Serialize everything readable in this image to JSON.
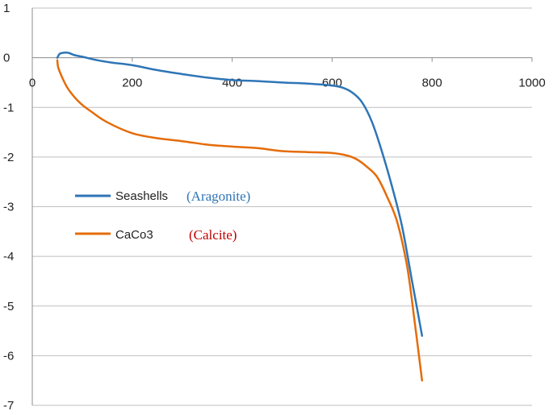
{
  "chart_data": {
    "type": "line",
    "title": "",
    "xlabel": "",
    "ylabel": "",
    "xlim": [
      0,
      1000
    ],
    "ylim": [
      -7,
      1
    ],
    "x_ticks": [
      0,
      200,
      400,
      600,
      800,
      1000
    ],
    "y_ticks": [
      1,
      0,
      -1,
      -2,
      -3,
      -4,
      -5,
      -6,
      -7
    ],
    "x_tick_labels": [
      "0",
      "200",
      "400",
      "600",
      "800",
      "1000"
    ],
    "y_tick_labels": [
      "1",
      "0",
      "-1",
      "-2",
      "-3",
      "-4",
      "-5",
      "-6",
      "-7"
    ],
    "grid": true,
    "legend_position": "center-left",
    "series": [
      {
        "name": "Seashells",
        "annotation": "(Aragonite)",
        "color": "#2e75b6",
        "annotation_color": "#2e75b6",
        "x": [
          50,
          55,
          62,
          72,
          85,
          100,
          130,
          160,
          200,
          250,
          300,
          350,
          400,
          450,
          500,
          550,
          600,
          620,
          640,
          660,
          680,
          700,
          720,
          740,
          760,
          780
        ],
        "y": [
          0.0,
          0.08,
          0.1,
          0.1,
          0.05,
          0.02,
          -0.05,
          -0.1,
          -0.15,
          -0.25,
          -0.33,
          -0.4,
          -0.45,
          -0.47,
          -0.5,
          -0.52,
          -0.56,
          -0.6,
          -0.7,
          -0.9,
          -1.3,
          -1.9,
          -2.6,
          -3.4,
          -4.5,
          -5.6
        ]
      },
      {
        "name": "CaCo3",
        "annotation": "(Calcite)",
        "color": "#e46c0a",
        "annotation_color": "#c00000",
        "x": [
          50,
          52,
          60,
          70,
          85,
          100,
          120,
          150,
          200,
          250,
          300,
          350,
          400,
          450,
          500,
          550,
          600,
          630,
          650,
          670,
          690,
          710,
          730,
          750,
          765,
          780
        ],
        "y": [
          -0.05,
          -0.2,
          -0.4,
          -0.6,
          -0.8,
          -0.95,
          -1.1,
          -1.3,
          -1.52,
          -1.62,
          -1.68,
          -1.75,
          -1.79,
          -1.82,
          -1.88,
          -1.9,
          -1.92,
          -1.97,
          -2.05,
          -2.2,
          -2.4,
          -2.8,
          -3.3,
          -4.2,
          -5.3,
          -6.5
        ]
      }
    ]
  }
}
